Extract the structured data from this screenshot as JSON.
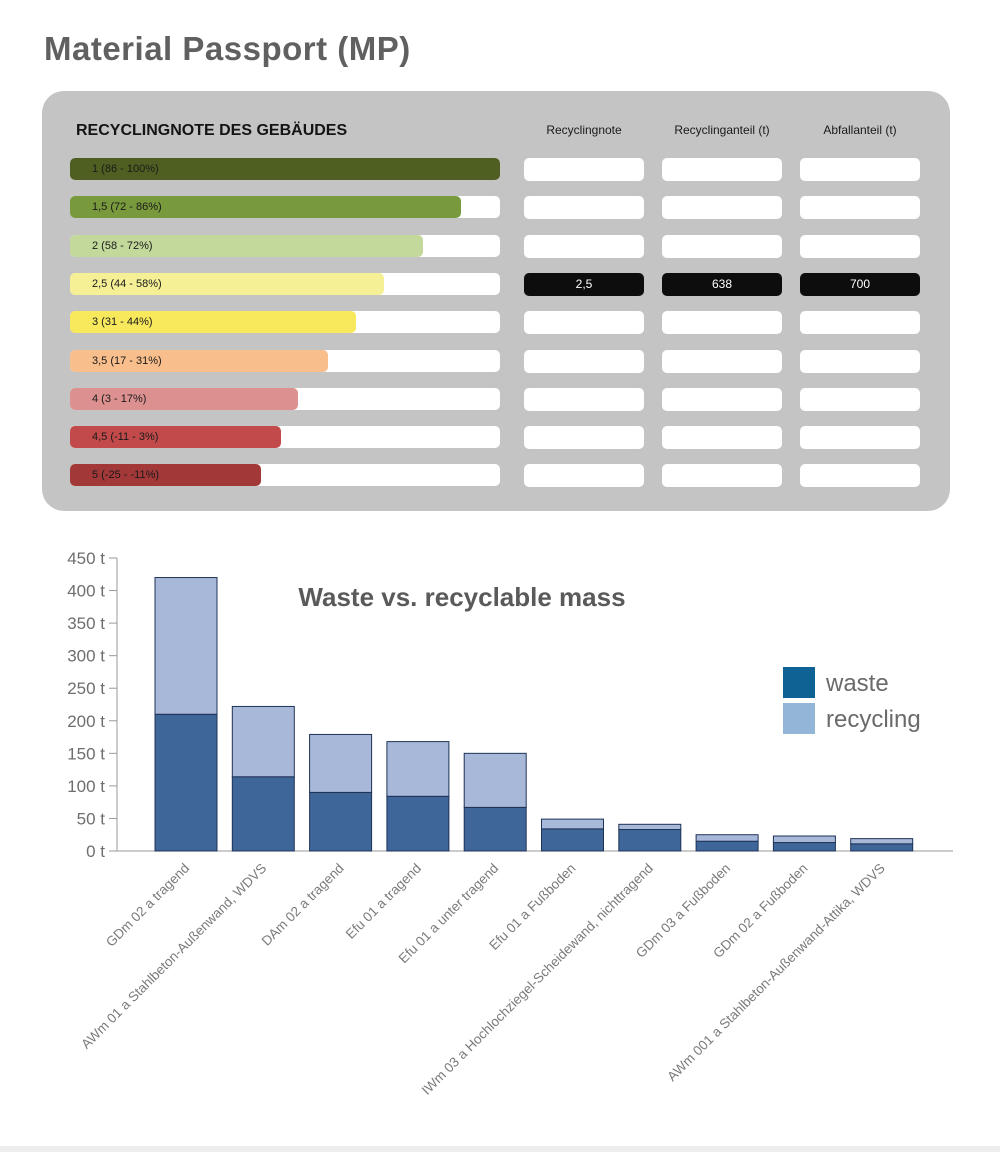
{
  "page": {
    "title": "Material Passport (MP)"
  },
  "panel": {
    "heading": "RECYCLINGNOTE DES GEBÄUDES",
    "columns": [
      "Recyclingnote",
      "Recyclinganteil (t)",
      "Abfallanteil (t)"
    ],
    "grades": [
      {
        "label": "1 (86 - 100%)",
        "color": "#4e5f21",
        "fill": 1.0
      },
      {
        "label": "1,5 (72 - 86%)",
        "color": "#799a3c",
        "fill": 0.91
      },
      {
        "label": "2 (58 - 72%)",
        "color": "#c3d99c",
        "fill": 0.82
      },
      {
        "label": "2,5 (44 - 58%)",
        "color": "#f5f096",
        "fill": 0.73
      },
      {
        "label": "3 (31 - 44%)",
        "color": "#f7e85c",
        "fill": 0.665
      },
      {
        "label": "3,5 (17 - 31%)",
        "color": "#f8bf8c",
        "fill": 0.6
      },
      {
        "label": "4 (3 - 17%)",
        "color": "#dc9190",
        "fill": 0.53
      },
      {
        "label": "4,5 (-11 - 3%)",
        "color": "#c34a4a",
        "fill": 0.49
      },
      {
        "label": "5 (-25 - -11%)",
        "color": "#a33838",
        "fill": 0.445
      }
    ],
    "active_row": 3,
    "active_values": [
      "2,5",
      "638",
      "700"
    ]
  },
  "chart_data": {
    "type": "bar",
    "stacked": true,
    "title": "Waste vs. recyclable mass",
    "xlabel": "",
    "ylabel": "",
    "ylim": [
      0,
      450
    ],
    "yticks": [
      "0 t",
      "50 t",
      "100 t",
      "150 t",
      "200 t",
      "250 t",
      "300 t",
      "350 t",
      "400 t",
      "450 t"
    ],
    "categories": [
      "GDm 02 a tragend",
      "AWm 01 a Stahlbeton-Außenwand, WDVS",
      "DAm 02 a tragend",
      "Efu 01 a tragend",
      "Efu 01 a unter tragend",
      "Efu 01 a Fußboden",
      "IWm 03 a Hochlochziegel-Scheidewand, nichttragend",
      "GDm 03 a Fußboden",
      "GDm 02 a Fußboden",
      "AWm 001 a Stahlbeton-Außenwand-Attika, WDVS"
    ],
    "series": [
      {
        "name": "waste",
        "color": "#3f6699",
        "values": [
          210,
          114,
          90,
          84,
          67,
          34,
          33,
          15,
          13,
          11
        ]
      },
      {
        "name": "recycling",
        "color": "#a8b8d8",
        "values": [
          210,
          108,
          89,
          84,
          83,
          15,
          8,
          10,
          10,
          8
        ]
      }
    ],
    "legend": {
      "position": "right",
      "items": [
        {
          "name": "waste",
          "color": "#0f6394"
        },
        {
          "name": "recycling",
          "color": "#92b5d8"
        }
      ]
    },
    "grid": false
  }
}
